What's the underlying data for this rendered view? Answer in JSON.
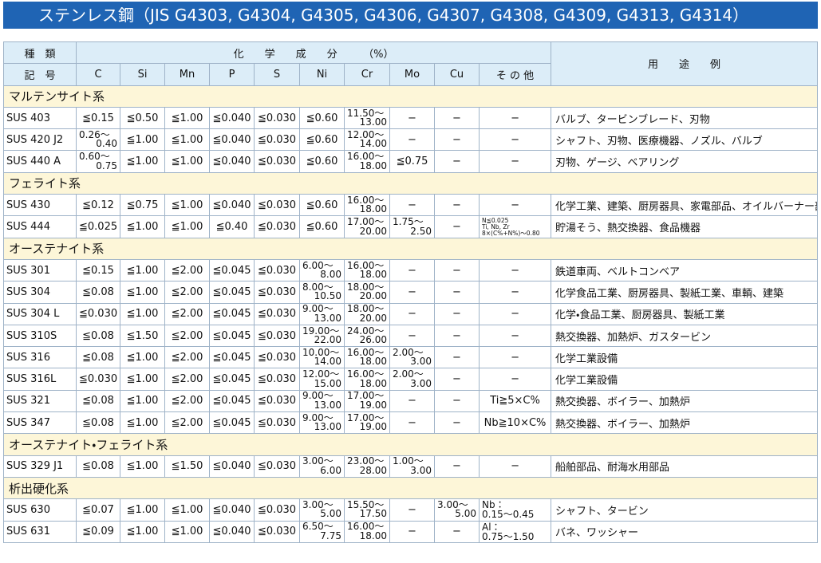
{
  "title": "ステンレス鋼（JIS G4303, G4304, G4305, G4306, G4307, G4308, G4309, G4313, G4314）",
  "header": {
    "kind": "種　類",
    "code": "記　号",
    "composition": "化　　学　　成　　分　　　（%）",
    "use": "用　　途　　例",
    "columns": [
      "C",
      "Si",
      "Mn",
      "P",
      "S",
      "Ni",
      "Cr",
      "Mo",
      "Cu",
      "そ の 他"
    ]
  },
  "sections": [
    {
      "name": "マルテンサイト系",
      "rows": [
        [
          "SUS 403",
          "≦0.15",
          "≦0.50",
          "≦1.00",
          "≦0.040",
          "≦0.030",
          "≦0.60",
          [
            "11.50〜",
            "13.00"
          ],
          "−",
          "−",
          "−",
          "バルブ、タービンブレード、刃物"
        ],
        [
          "SUS 420 J2",
          [
            "0.26〜",
            "0.40"
          ],
          "≦1.00",
          "≦1.00",
          "≦0.040",
          "≦0.030",
          "≦0.60",
          [
            "12.00〜",
            "14.00"
          ],
          "−",
          "−",
          "−",
          "シャフト、刃物、医療機器、ノズル、バルブ"
        ],
        [
          "SUS 440 A",
          [
            "0.60〜",
            "0.75"
          ],
          "≦1.00",
          "≦1.00",
          "≦0.040",
          "≦0.030",
          "≦0.60",
          [
            "16.00〜",
            "18.00"
          ],
          "≦0.75",
          "−",
          "−",
          "刃物、ゲージ、ベアリング"
        ]
      ]
    },
    {
      "name": "フェライト系",
      "rows": [
        [
          "SUS 430",
          "≦0.12",
          "≦0.75",
          "≦1.00",
          "≦0.040",
          "≦0.030",
          "≦0.60",
          [
            "16.00〜",
            "18.00"
          ],
          "−",
          "−",
          "−",
          "化学工業、建築、厨房器具、家電部品、オイルバーナー部品"
        ],
        [
          "SUS 444",
          "≦0.025",
          "≦1.00",
          "≦1.00",
          "≦0.40",
          "≦0.030",
          "≦0.60",
          [
            "17.00〜",
            "20.00"
          ],
          [
            "1.75〜",
            "2.50"
          ],
          "−",
          [
            "N≦0.025",
            "Ti, Nb, Zr",
            "8×(C%+N%)〜0.80"
          ],
          "貯湯そう、熱交換器、食品機器"
        ]
      ]
    },
    {
      "name": "オーステナイト系",
      "rows": [
        [
          "SUS 301",
          "≦0.15",
          "≦1.00",
          "≦2.00",
          "≦0.045",
          "≦0.030",
          [
            "6.00〜",
            "8.00"
          ],
          [
            "16.00〜",
            "18.00"
          ],
          "−",
          "−",
          "−",
          "鉄道車両、ベルトコンベア"
        ],
        [
          "SUS 304",
          "≦0.08",
          "≦1.00",
          "≦2.00",
          "≦0.045",
          "≦0.030",
          [
            "8.00〜",
            "10.50"
          ],
          [
            "18.00〜",
            "20.00"
          ],
          "−",
          "−",
          "−",
          "化学食品工業、厨房器具、製紙工業、車輌、建築"
        ],
        [
          "SUS 304 L",
          "≦0.030",
          "≦1.00",
          "≦2.00",
          "≦0.045",
          "≦0.030",
          [
            "9.00〜",
            "13.00"
          ],
          [
            "18.00〜",
            "20.00"
          ],
          "−",
          "−",
          "−",
          "化学・食品工業、厨房器具、製紙工業"
        ],
        [
          "SUS 310S",
          "≦0.08",
          "≦1.50",
          "≦2.00",
          "≦0.045",
          "≦0.030",
          [
            "19.00〜",
            "22.00"
          ],
          [
            "24.00〜",
            "26.00"
          ],
          "−",
          "−",
          "−",
          "熱交換器、加熱炉、ガスタービン"
        ],
        [
          "SUS 316",
          "≦0.08",
          "≦1.00",
          "≦2.00",
          "≦0.045",
          "≦0.030",
          [
            "10.00〜",
            "14.00"
          ],
          [
            "16.00〜",
            "18.00"
          ],
          [
            "2.00〜",
            "3.00"
          ],
          "−",
          "−",
          "化学工業設備"
        ],
        [
          "SUS 316L",
          "≦0.030",
          "≦1.00",
          "≦2.00",
          "≦0.045",
          "≦0.030",
          [
            "12.00〜",
            "15.00"
          ],
          [
            "16.00〜",
            "18.00"
          ],
          [
            "2.00〜",
            "3.00"
          ],
          "−",
          "−",
          "化学工業設備"
        ],
        [
          "SUS 321",
          "≦0.08",
          "≦1.00",
          "≦2.00",
          "≦0.045",
          "≦0.030",
          [
            "9.00〜",
            "13.00"
          ],
          [
            "17.00〜",
            "19.00"
          ],
          "−",
          "−",
          "Ti≧5×C%",
          "熱交換器、ボイラー、加熱炉"
        ],
        [
          "SUS 347",
          "≦0.08",
          "≦1.00",
          "≦2.00",
          "≦0.045",
          "≦0.030",
          [
            "9.00〜",
            "13.00"
          ],
          [
            "17.00〜",
            "19.00"
          ],
          "−",
          "−",
          "Nb≧10×C%",
          "熱交換器、ボイラー、加熱炉"
        ]
      ]
    },
    {
      "name": "オーステナイト・フェライト系",
      "rows": [
        [
          "SUS 329 J1",
          "≦0.08",
          "≦1.00",
          "≦1.50",
          "≦0.040",
          "≦0.030",
          [
            "3.00〜",
            "6.00"
          ],
          [
            "23.00〜",
            "28.00"
          ],
          [
            "1.00〜",
            "3.00"
          ],
          "−",
          "−",
          "船舶部品、耐海水用部品"
        ]
      ]
    },
    {
      "name": "析出硬化系",
      "rows": [
        [
          "SUS 630",
          "≦0.07",
          "≦1.00",
          "≦1.00",
          "≦0.040",
          "≦0.030",
          [
            "3.00〜",
            "5.00"
          ],
          [
            "15.50〜",
            "17.50"
          ],
          "−",
          [
            "3.00〜",
            "5.00"
          ],
          [
            "Nb：",
            "0.15〜0.45"
          ],
          "シャフト、タービン"
        ],
        [
          "SUS 631",
          "≦0.09",
          "≦1.00",
          "≦1.00",
          "≦0.040",
          "≦0.030",
          [
            "6.50〜",
            "7.75"
          ],
          [
            "16.00〜",
            "18.00"
          ],
          "−",
          "−",
          [
            "Al：",
            "0.75〜1.50"
          ],
          "バネ、ワッシャー"
        ]
      ]
    }
  ]
}
